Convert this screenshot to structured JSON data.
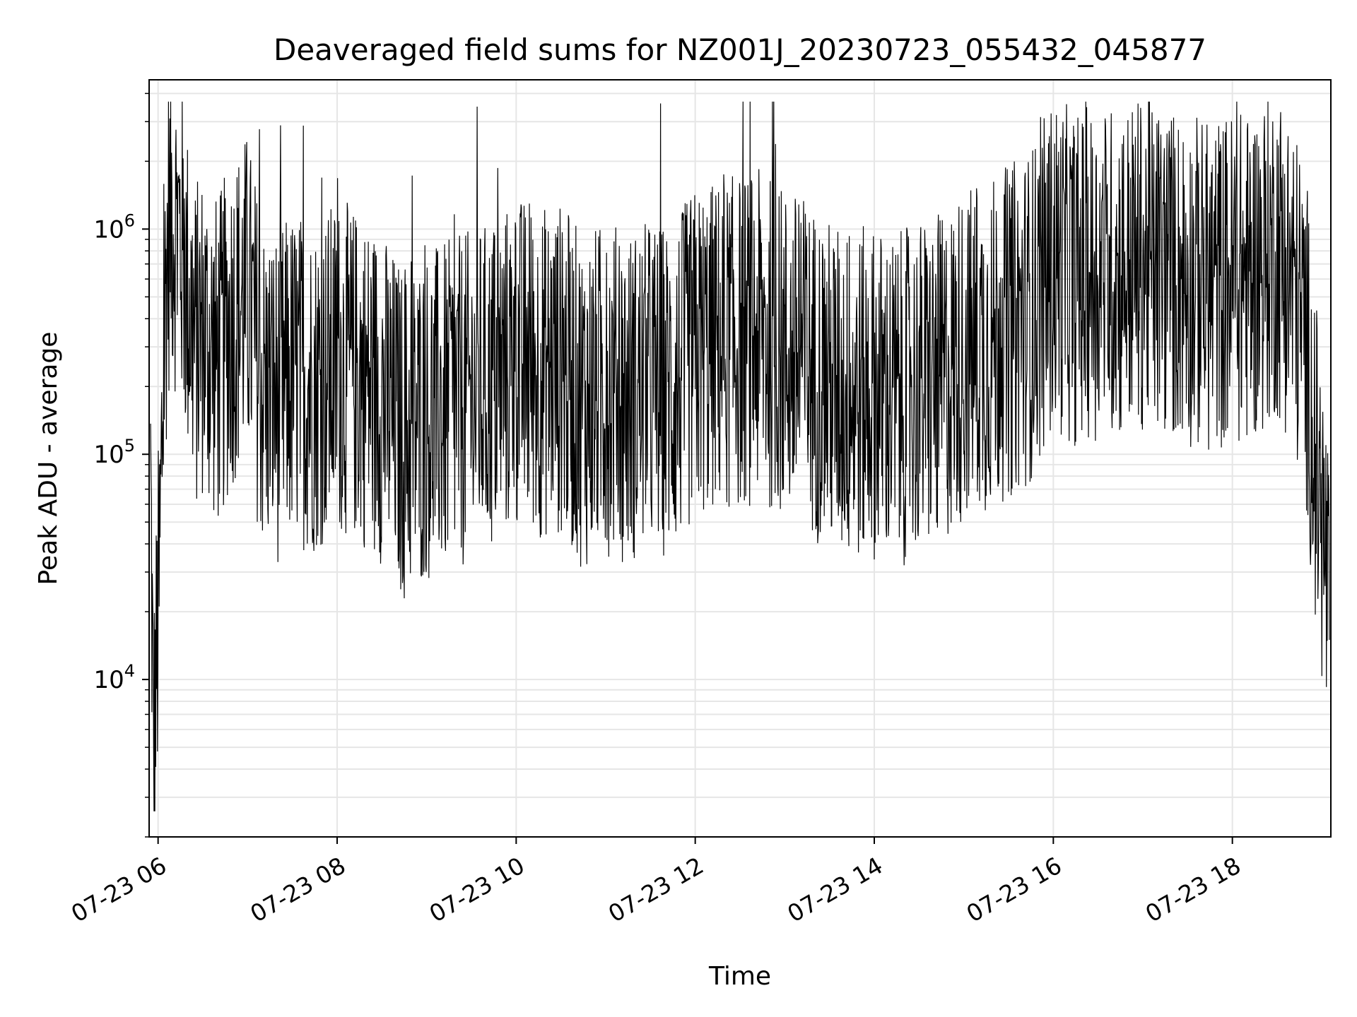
{
  "chart_data": {
    "type": "line",
    "title": "Deaveraged field sums for NZ001J_20230723_055432_045877",
    "xlabel": "Time",
    "ylabel": "Peak ADU - average",
    "yscale": "log",
    "ylim": [
      2000,
      4600000
    ],
    "xlim": [
      "2023-07-23 05:54",
      "2023-07-23 19:06"
    ],
    "grid": true,
    "legend": "none",
    "line_color": "#000000",
    "x_ticks": [
      {
        "value": "2023-07-23 06:00",
        "label": "07-23 06"
      },
      {
        "value": "2023-07-23 08:00",
        "label": "07-23 08"
      },
      {
        "value": "2023-07-23 10:00",
        "label": "07-23 10"
      },
      {
        "value": "2023-07-23 12:00",
        "label": "07-23 12"
      },
      {
        "value": "2023-07-23 14:00",
        "label": "07-23 14"
      },
      {
        "value": "2023-07-23 16:00",
        "label": "07-23 16"
      },
      {
        "value": "2023-07-23 18:00",
        "label": "07-23 18"
      }
    ],
    "y_ticks": [
      {
        "value": 10000,
        "base": "10",
        "exp": "4"
      },
      {
        "value": 100000,
        "base": "10",
        "exp": "5"
      },
      {
        "value": 1000000,
        "base": "10",
        "exp": "6"
      }
    ],
    "series": [
      {
        "x": [
          "2023-07-23 05:55",
          "2023-07-23 05:57",
          "2023-07-23 05:59",
          "2023-07-23 06:01",
          "2023-07-23 06:03",
          "2023-07-23 06:05",
          "2023-07-23 06:07",
          "2023-07-23 06:09",
          "2023-07-23 06:12",
          "2023-07-23 06:15",
          "2023-07-23 06:20",
          "2023-07-23 06:25",
          "2023-07-23 06:30",
          "2023-07-23 06:40",
          "2023-07-23 06:50",
          "2023-07-23 07:00",
          "2023-07-23 07:10",
          "2023-07-23 07:20",
          "2023-07-23 07:30",
          "2023-07-23 07:45",
          "2023-07-23 08:00",
          "2023-07-23 08:15",
          "2023-07-23 08:30",
          "2023-07-23 08:45",
          "2023-07-23 09:00",
          "2023-07-23 09:15",
          "2023-07-23 09:30",
          "2023-07-23 09:45",
          "2023-07-23 10:00",
          "2023-07-23 10:15",
          "2023-07-23 10:30",
          "2023-07-23 10:45",
          "2023-07-23 11:00",
          "2023-07-23 11:15",
          "2023-07-23 11:30",
          "2023-07-23 11:45",
          "2023-07-23 12:00",
          "2023-07-23 12:15",
          "2023-07-23 12:30",
          "2023-07-23 12:45",
          "2023-07-23 13:00",
          "2023-07-23 13:15",
          "2023-07-23 13:30",
          "2023-07-23 13:45",
          "2023-07-23 14:00",
          "2023-07-23 14:15",
          "2023-07-23 14:30",
          "2023-07-23 14:45",
          "2023-07-23 15:00",
          "2023-07-23 15:15",
          "2023-07-23 15:30",
          "2023-07-23 15:45",
          "2023-07-23 16:00",
          "2023-07-23 16:15",
          "2023-07-23 16:30",
          "2023-07-23 16:45",
          "2023-07-23 17:00",
          "2023-07-23 17:15",
          "2023-07-23 17:30",
          "2023-07-23 17:45",
          "2023-07-23 18:00",
          "2023-07-23 18:10",
          "2023-07-23 18:20",
          "2023-07-23 18:30",
          "2023-07-23 18:40",
          "2023-07-23 18:50",
          "2023-07-23 18:55",
          "2023-07-23 19:00",
          "2023-07-23 19:03",
          "2023-07-23 19:05"
        ],
        "y": [
          80000,
          4000,
          12000,
          30000,
          150000,
          500000,
          1000000,
          1200000,
          1000000,
          900000,
          500000,
          300000,
          350000,
          250000,
          400000,
          500000,
          200000,
          180000,
          220000,
          200000,
          250000,
          220000,
          180000,
          120000,
          150000,
          160000,
          180000,
          200000,
          260000,
          230000,
          240000,
          170000,
          200000,
          180000,
          200000,
          190000,
          280000,
          300000,
          320000,
          330000,
          280000,
          250000,
          200000,
          180000,
          190000,
          170000,
          200000,
          210000,
          280000,
          300000,
          350000,
          420000,
          700000,
          600000,
          650000,
          650000,
          700000,
          650000,
          600000,
          550000,
          620000,
          600000,
          700000,
          800000,
          600000,
          300000,
          100000,
          50000,
          30000,
          15000
        ]
      }
    ]
  }
}
